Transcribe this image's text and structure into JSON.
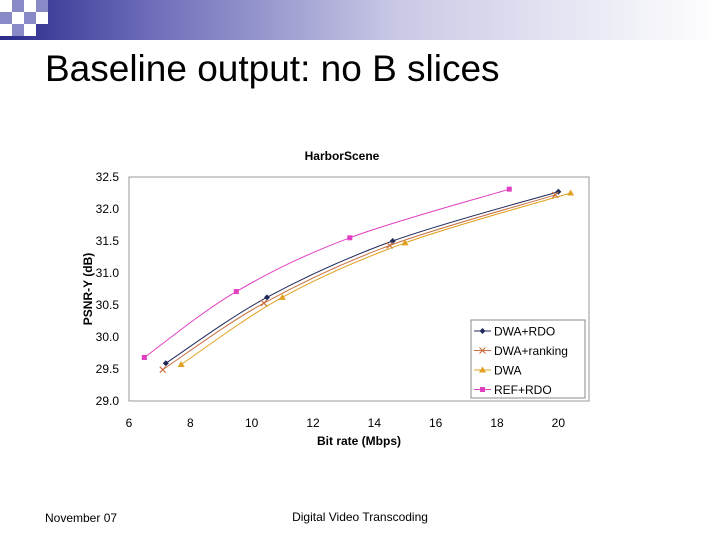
{
  "slide": {
    "title": "Baseline output: no B slices",
    "footer_left": "November 07",
    "footer_center": "Digital Video Transcoding"
  },
  "chart_data": {
    "type": "line",
    "title": "HarborScene",
    "xlabel": "Bit rate (Mbps)",
    "ylabel": "PSNR-Y (dB)",
    "xlim": [
      6,
      21
    ],
    "ylim": [
      29.0,
      32.5
    ],
    "xticks": [
      "6",
      "8",
      "10",
      "12",
      "14",
      "16",
      "18",
      "20"
    ],
    "yticks": [
      "29.0",
      "29.5",
      "30.0",
      "30.5",
      "31.0",
      "31.5",
      "32.0",
      "32.5"
    ],
    "grid": false,
    "legend_position": "bottom-right",
    "series": [
      {
        "name": "DWA+RDO",
        "color": "#1f2a5a",
        "marker": "diamond",
        "x": [
          7.2,
          10.5,
          14.6,
          20.0
        ],
        "y": [
          29.59,
          30.62,
          31.5,
          32.27
        ]
      },
      {
        "name": "DWA+ranking",
        "color": "#c87040",
        "marker": "x",
        "x": [
          7.1,
          10.4,
          14.5,
          19.9
        ],
        "y": [
          29.49,
          30.53,
          31.43,
          32.22
        ]
      },
      {
        "name": "DWA",
        "color": "#e0a020",
        "marker": "triangle",
        "x": [
          7.7,
          11.0,
          15.0,
          20.4
        ],
        "y": [
          29.57,
          30.62,
          31.47,
          32.25
        ]
      },
      {
        "name": "REF+RDO",
        "color": "#e040c0",
        "marker": "square",
        "x": [
          6.5,
          9.5,
          13.2,
          18.4
        ],
        "y": [
          29.68,
          30.71,
          31.55,
          32.31
        ]
      }
    ]
  }
}
